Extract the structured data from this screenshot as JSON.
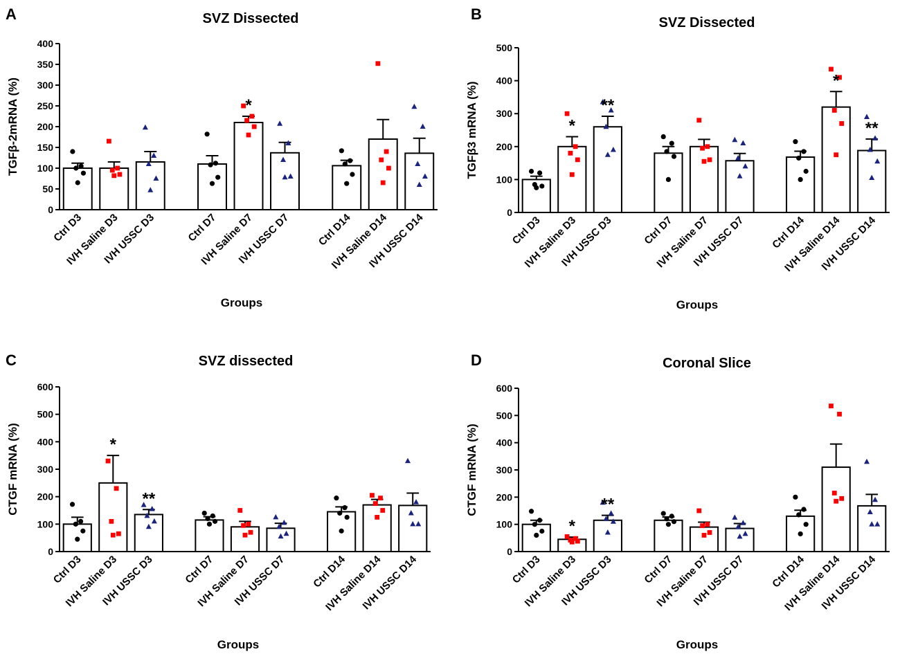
{
  "colors": {
    "ctrl": "#000000",
    "saline": "#ff0000",
    "ussc": "#1a237e",
    "bar_fill": "#ffffff",
    "bar_stroke": "#000000"
  },
  "chart_data": [
    {
      "panel": "A",
      "type": "bar",
      "title": "SVZ  Dissected",
      "xlabel": "Groups",
      "ylabel": "TGFβ-2mRNA (%)",
      "ylim": [
        0,
        400
      ],
      "yticks": [
        0,
        50,
        100,
        150,
        200,
        250,
        300,
        350,
        400
      ],
      "categories": [
        "Ctrl D3",
        "IVH Saline D3",
        "IVH USSC D3",
        "Ctrl D7",
        "IVH Saline D7",
        "IVH USSC D7",
        "Ctrl D14",
        "IVH Saline D14",
        "IVH USSC D14"
      ],
      "group_kind": [
        "ctrl",
        "saline",
        "ussc",
        "ctrl",
        "saline",
        "ussc",
        "ctrl",
        "saline",
        "ussc"
      ],
      "means": [
        100,
        100,
        115,
        110,
        210,
        137,
        106,
        170,
        136
      ],
      "sem": [
        12,
        15,
        25,
        20,
        15,
        25,
        13,
        47,
        36
      ],
      "points": [
        [
          140,
          105,
          100,
          88,
          65
        ],
        [
          165,
          100,
          95,
          85,
          82
        ],
        [
          198,
          130,
          110,
          75,
          47
        ],
        [
          182,
          112,
          108,
          78,
          63
        ],
        [
          250,
          225,
          215,
          200,
          180
        ],
        [
          207,
          160,
          120,
          80,
          78
        ],
        [
          142,
          118,
          110,
          85,
          63
        ],
        [
          352,
          140,
          120,
          100,
          65
        ],
        [
          248,
          200,
          110,
          80,
          60
        ]
      ],
      "significance": [
        "",
        "",
        "",
        "",
        "*",
        "",
        "",
        "",
        ""
      ]
    },
    {
      "panel": "B",
      "type": "bar",
      "title": "SVZ  Dissected",
      "xlabel": "Groups",
      "ylabel": "TGFβ3 mRNA (%)",
      "ylim": [
        0,
        500
      ],
      "yticks": [
        0,
        100,
        200,
        300,
        400,
        500
      ],
      "categories": [
        "Ctrl D3",
        "IVH Saline D3",
        "IVH USSC D3",
        "Ctrl D7",
        "IVH Saline D7",
        "IVH USSC D7",
        "Ctrl D14",
        "IVH Saline D14",
        "IVH USSC D14"
      ],
      "group_kind": [
        "ctrl",
        "saline",
        "ussc",
        "ctrl",
        "saline",
        "ussc",
        "ctrl",
        "saline",
        "ussc"
      ],
      "means": [
        100,
        200,
        260,
        180,
        200,
        157,
        168,
        320,
        188
      ],
      "sem": [
        10,
        30,
        32,
        20,
        22,
        22,
        18,
        47,
        35
      ],
      "points": [
        [
          125,
          120,
          85,
          80,
          75
        ],
        [
          300,
          200,
          180,
          160,
          115
        ],
        [
          335,
          310,
          260,
          190,
          175
        ],
        [
          230,
          210,
          185,
          170,
          100
        ],
        [
          280,
          200,
          195,
          160,
          155
        ],
        [
          220,
          210,
          165,
          140,
          110
        ],
        [
          215,
          185,
          165,
          125,
          100
        ],
        [
          435,
          410,
          310,
          270,
          175
        ],
        [
          290,
          225,
          190,
          155,
          105
        ]
      ],
      "significance": [
        "",
        "*",
        "**",
        "",
        "",
        "",
        "",
        "*",
        "**"
      ]
    },
    {
      "panel": "C",
      "type": "bar",
      "title": "SVZ dissected",
      "xlabel": "Groups",
      "ylabel": "CTGF mRNA (%)",
      "ylim": [
        0,
        600
      ],
      "yticks": [
        0,
        100,
        200,
        300,
        400,
        500,
        600
      ],
      "categories": [
        "Ctrl D3",
        "IVH Saline D3",
        "IVH USSC D3",
        "Ctrl D7",
        "IVH Saline D7",
        "IVH USSC D7",
        "Ctrl D14",
        "IVH Saline D14",
        "IVH USSC D14"
      ],
      "group_kind": [
        "ctrl",
        "saline",
        "ussc",
        "ctrl",
        "saline",
        "ussc",
        "ctrl",
        "saline",
        "ussc"
      ],
      "means": [
        100,
        250,
        135,
        115,
        90,
        85,
        145,
        170,
        168
      ],
      "sem": [
        25,
        100,
        18,
        12,
        20,
        18,
        18,
        20,
        45
      ],
      "points": [
        [
          172,
          110,
          100,
          75,
          45
        ],
        [
          330,
          230,
          110,
          65,
          60
        ],
        [
          170,
          155,
          130,
          110,
          90
        ],
        [
          140,
          130,
          120,
          110,
          100
        ],
        [
          150,
          100,
          95,
          70,
          60
        ],
        [
          125,
          105,
          90,
          65,
          55
        ],
        [
          195,
          160,
          140,
          125,
          75
        ],
        [
          205,
          195,
          175,
          150,
          125
        ],
        [
          330,
          180,
          140,
          100,
          100
        ]
      ],
      "significance": [
        "",
        "*",
        "**",
        "",
        "",
        "",
        "",
        "",
        ""
      ]
    },
    {
      "panel": "D",
      "type": "bar",
      "title": "Coronal  Slice",
      "xlabel": "Groups",
      "ylabel": "CTGF mRNA (%)",
      "ylim": [
        0,
        600
      ],
      "yticks": [
        0,
        100,
        200,
        300,
        400,
        500,
        600
      ],
      "categories": [
        "Ctrl D3",
        "IVH Saline D3",
        "IVH USSC D3",
        "Ctrl D7",
        "IVH Saline D7",
        "IVH USSC D7",
        "Ctrl D14",
        "IVH Saline D14",
        "IVH USSC D14"
      ],
      "group_kind": [
        "ctrl",
        "saline",
        "ussc",
        "ctrl",
        "saline",
        "ussc",
        "ctrl",
        "saline",
        "ussc"
      ],
      "means": [
        100,
        45,
        115,
        115,
        90,
        85,
        130,
        310,
        168
      ],
      "sem": [
        15,
        8,
        18,
        12,
        18,
        18,
        22,
        85,
        42
      ],
      "points": [
        [
          148,
          115,
          100,
          75,
          60
        ],
        [
          55,
          48,
          42,
          38,
          35
        ],
        [
          180,
          140,
          120,
          110,
          70
        ],
        [
          140,
          130,
          120,
          110,
          100
        ],
        [
          150,
          100,
          95,
          70,
          60
        ],
        [
          125,
          105,
          90,
          65,
          55
        ],
        [
          200,
          155,
          135,
          100,
          65
        ],
        [
          535,
          505,
          215,
          195,
          185
        ],
        [
          330,
          190,
          145,
          100,
          100
        ]
      ],
      "significance": [
        "",
        "*",
        "**",
        "",
        "",
        "",
        "",
        "",
        ""
      ]
    }
  ]
}
